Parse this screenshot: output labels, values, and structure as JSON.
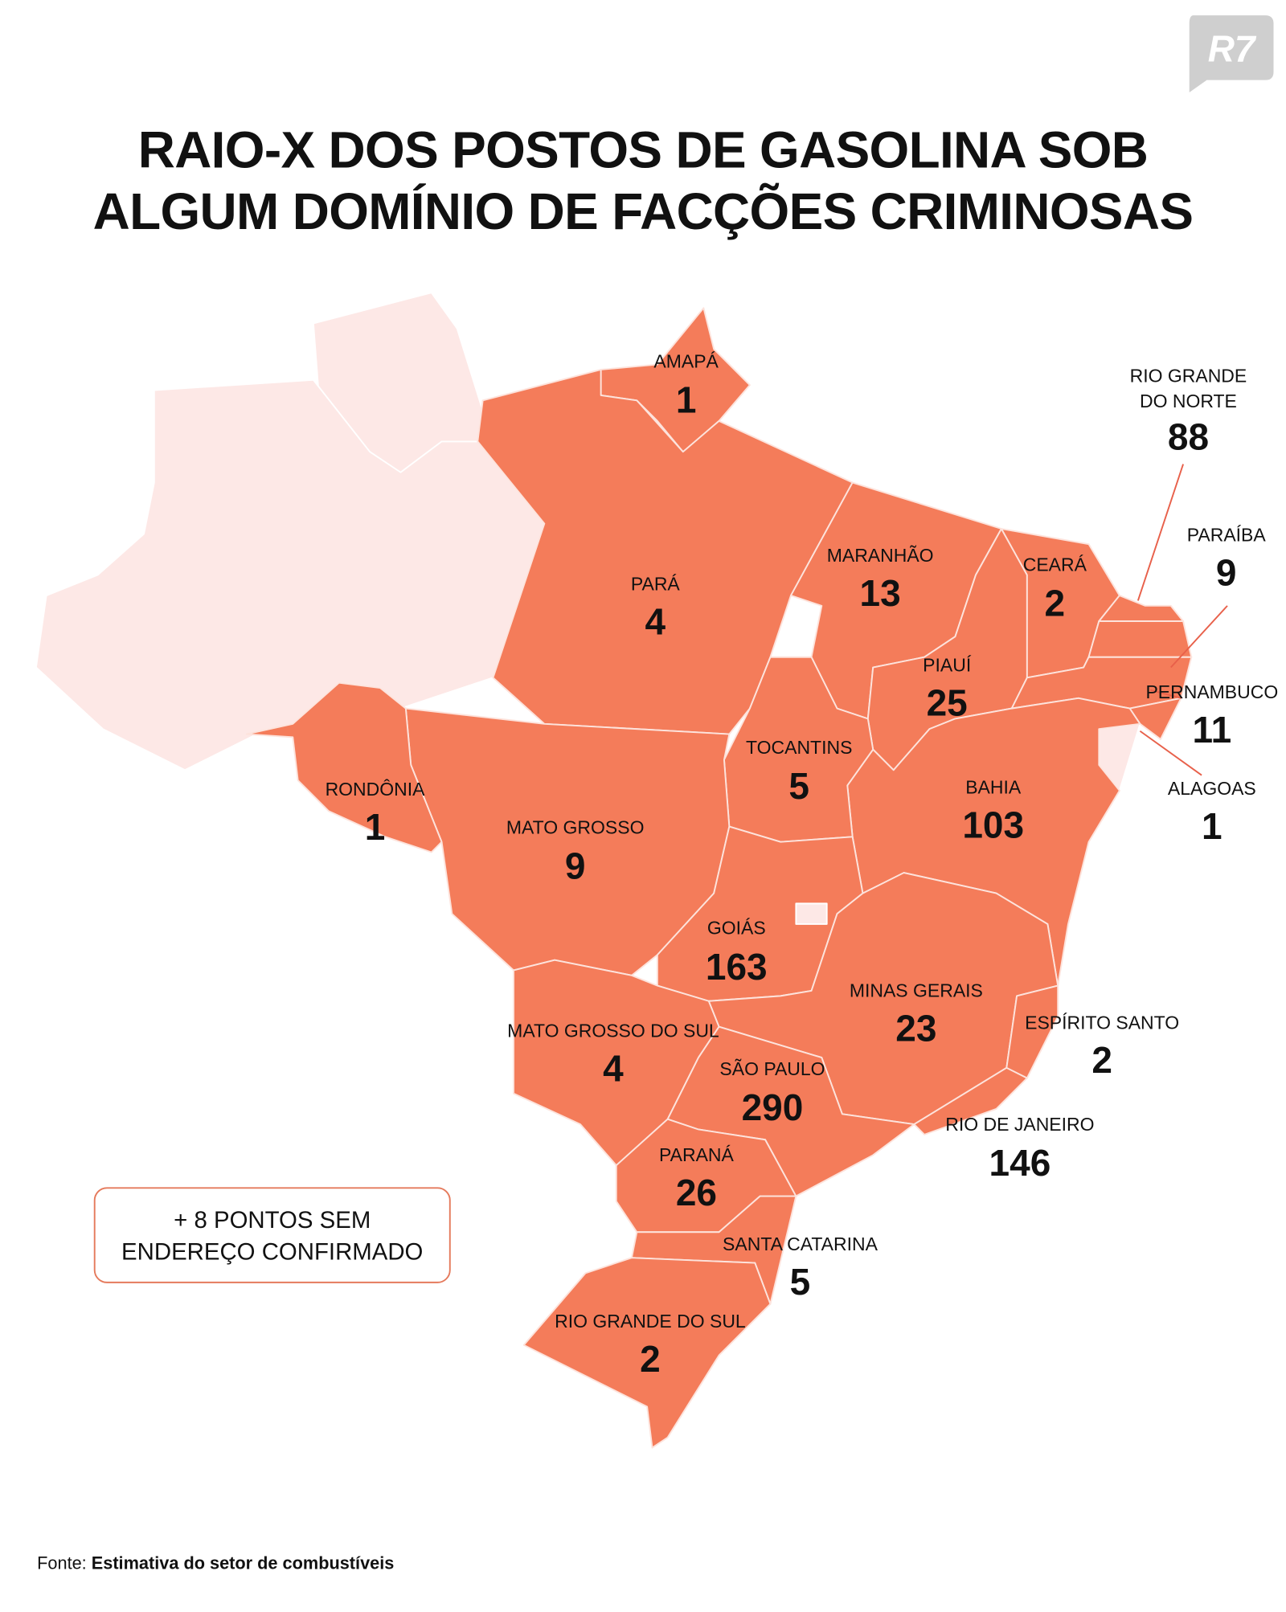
{
  "logo": "R7",
  "title": [
    "RAIO-X DOS POSTOS DE GASOLINA SOB",
    "ALGUM DOMÍNIO DE FACÇÕES CRIMINOSAS"
  ],
  "map": {
    "regions": [
      {
        "name": [
          "AMAPÁ"
        ],
        "value": 1
      },
      {
        "name": [
          "PARÁ"
        ],
        "value": 4
      },
      {
        "name": [
          "MARANHÃO"
        ],
        "value": 13
      },
      {
        "name": [
          "CEARÁ"
        ],
        "value": 2
      },
      {
        "name": [
          "RIO GRANDE",
          "DO NORTE"
        ],
        "value": 88
      },
      {
        "name": [
          "PARAÍBA"
        ],
        "value": 9
      },
      {
        "name": [
          "PERNAMBUCO"
        ],
        "value": 11
      },
      {
        "name": [
          "ALAGOAS"
        ],
        "value": 1
      },
      {
        "name": [
          "PIAUÍ"
        ],
        "value": 25
      },
      {
        "name": [
          "TOCANTINS"
        ],
        "value": 5
      },
      {
        "name": [
          "BAHIA"
        ],
        "value": 103
      },
      {
        "name": [
          "RONDÔNIA"
        ],
        "value": 1
      },
      {
        "name": [
          "MATO GROSSO"
        ],
        "value": 9
      },
      {
        "name": [
          "GOIÁS"
        ],
        "value": 163
      },
      {
        "name": [
          "MINAS GERAIS"
        ],
        "value": 23
      },
      {
        "name": [
          "ESPÍRITO SANTO"
        ],
        "value": 2
      },
      {
        "name": [
          "MATO GROSSO DO SUL"
        ],
        "value": 4
      },
      {
        "name": [
          "SÃO PAULO"
        ],
        "value": 290
      },
      {
        "name": [
          "RIO DE JANEIRO"
        ],
        "value": 146
      },
      {
        "name": [
          "PARANÁ"
        ],
        "value": 26
      },
      {
        "name": [
          "SANTA CATARINA"
        ],
        "value": 5
      },
      {
        "name": [
          "RIO GRANDE DO SUL"
        ],
        "value": 2
      }
    ]
  },
  "note": [
    "+  8 PONTOS SEM",
    "ENDEREÇO CONFIRMADO"
  ],
  "source": {
    "label": "Fonte:",
    "text": "Estimativa do setor de combustíveis"
  }
}
